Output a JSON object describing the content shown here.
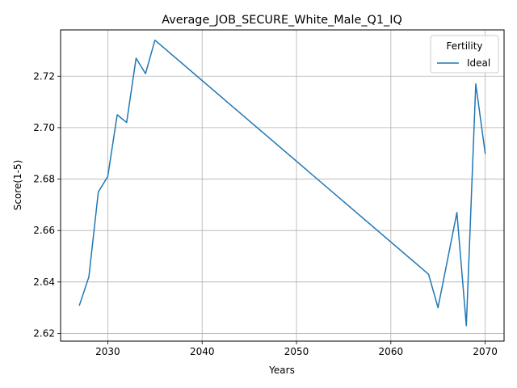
{
  "chart_data": {
    "type": "line",
    "title": "Average_JOB_SECURE_White_Male_Q1_IQ",
    "xlabel": "Years",
    "ylabel": "Score(1-5)",
    "xlim": [
      2025,
      2072
    ],
    "ylim": [
      2.617,
      2.738
    ],
    "x_ticks": [
      2030,
      2040,
      2050,
      2060,
      2070
    ],
    "y_ticks": [
      2.62,
      2.64,
      2.66,
      2.68,
      2.7,
      2.72
    ],
    "y_tick_labels": [
      "2.62",
      "2.64",
      "2.66",
      "2.68",
      "2.70",
      "2.72"
    ],
    "grid": true,
    "legend": {
      "title": "Fertility",
      "placement": "top-right"
    },
    "series": [
      {
        "name": "Ideal",
        "color": "#1f77b4",
        "x": [
          2027,
          2028,
          2029,
          2030,
          2031,
          2032,
          2033,
          2034,
          2035,
          2064,
          2065,
          2067,
          2068,
          2069,
          2070
        ],
        "y": [
          2.631,
          2.642,
          2.675,
          2.681,
          2.705,
          2.702,
          2.727,
          2.721,
          2.734,
          2.643,
          2.63,
          2.667,
          2.623,
          2.717,
          2.69
        ]
      }
    ]
  }
}
